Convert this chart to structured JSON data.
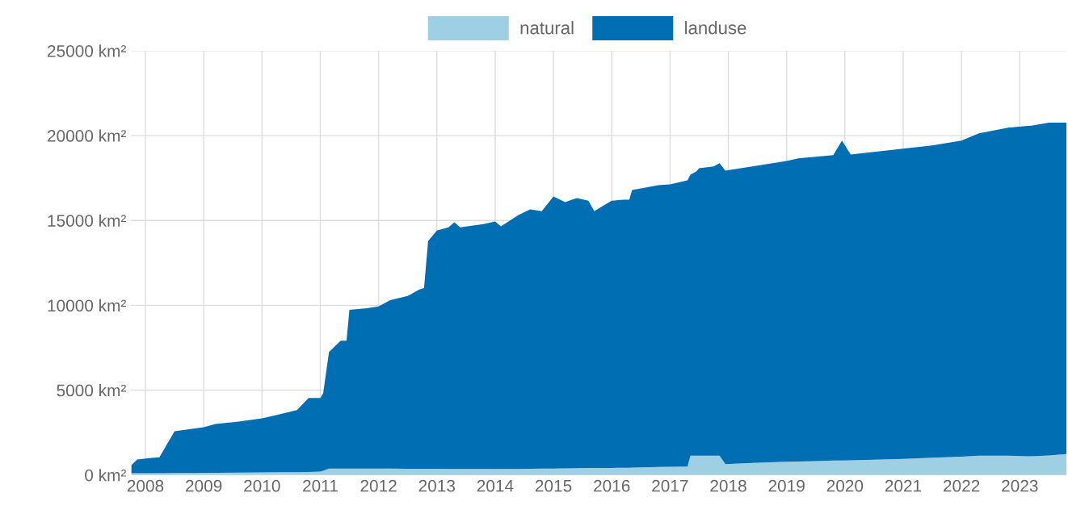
{
  "chart_data": {
    "type": "area",
    "stacked": true,
    "legend": "top",
    "grid": true,
    "x": [
      2007.76,
      2007.86,
      2008.07,
      2008.24,
      2008.5,
      2008.8,
      2009.0,
      2009.2,
      2009.6,
      2010.0,
      2010.3,
      2010.6,
      2010.8,
      2011.0,
      2011.05,
      2011.15,
      2011.35,
      2011.45,
      2011.5,
      2011.8,
      2012.0,
      2012.2,
      2012.5,
      2012.7,
      2012.78,
      2012.85,
      2013.0,
      2013.2,
      2013.3,
      2013.4,
      2013.8,
      2014.0,
      2014.1,
      2014.4,
      2014.6,
      2014.8,
      2015.0,
      2015.2,
      2015.4,
      2015.6,
      2015.7,
      2016.0,
      2016.2,
      2016.3,
      2016.35,
      2016.8,
      2017.0,
      2017.3,
      2017.35,
      2017.45,
      2017.5,
      2017.75,
      2017.85,
      2017.95,
      2018.5,
      2019.0,
      2019.2,
      2019.8,
      2019.95,
      2020.1,
      2020.5,
      2021.0,
      2021.5,
      2022.0,
      2022.3,
      2022.8,
      2023.2,
      2023.5,
      2023.8
    ],
    "series": [
      {
        "name": "natural",
        "color": "#9ecfe5",
        "values": [
          100,
          100,
          110,
          110,
          120,
          120,
          130,
          130,
          140,
          150,
          160,
          170,
          180,
          200,
          250,
          380,
          380,
          380,
          380,
          380,
          380,
          380,
          370,
          370,
          370,
          370,
          370,
          360,
          360,
          360,
          350,
          350,
          350,
          360,
          370,
          380,
          380,
          390,
          400,
          410,
          410,
          420,
          430,
          430,
          440,
          470,
          480,
          500,
          1140,
          1140,
          1140,
          1140,
          1140,
          640,
          720,
          780,
          800,
          850,
          860,
          870,
          900,
          950,
          1020,
          1080,
          1140,
          1140,
          1100,
          1150,
          1240
        ]
      },
      {
        "name": "landuse",
        "color": "#006eb3",
        "values": [
          480,
          810,
          890,
          940,
          2460,
          2600,
          2690,
          2880,
          3010,
          3190,
          3420,
          3650,
          4360,
          4340,
          4570,
          6870,
          7540,
          7540,
          9350,
          9450,
          9550,
          9920,
          10180,
          10560,
          10650,
          13420,
          14040,
          14240,
          14530,
          14240,
          14440,
          14590,
          14300,
          14960,
          15280,
          15170,
          16030,
          15690,
          15920,
          15760,
          15140,
          15750,
          15790,
          15790,
          16360,
          16610,
          16650,
          16870,
          16560,
          16750,
          16940,
          17040,
          17230,
          17300,
          17510,
          17730,
          17860,
          18000,
          18850,
          18020,
          18140,
          18280,
          18400,
          18630,
          19000,
          19330,
          19490,
          19610,
          19520
        ]
      }
    ],
    "xlim": [
      2007.75,
      2023.8
    ],
    "xticks": [
      2008,
      2009,
      2010,
      2011,
      2012,
      2013,
      2014,
      2015,
      2016,
      2017,
      2018,
      2019,
      2020,
      2021,
      2022,
      2023
    ],
    "ylim": [
      0,
      25000
    ],
    "yticks": [
      {
        "value": 0,
        "label": "0 km²"
      },
      {
        "value": 5000,
        "label": "5000 km²"
      },
      {
        "value": 10000,
        "label": "10000 km²"
      },
      {
        "value": 15000,
        "label": "15000 km²"
      },
      {
        "value": 20000,
        "label": "20000 km²"
      },
      {
        "value": 25000,
        "label": "25000 km²"
      }
    ]
  }
}
